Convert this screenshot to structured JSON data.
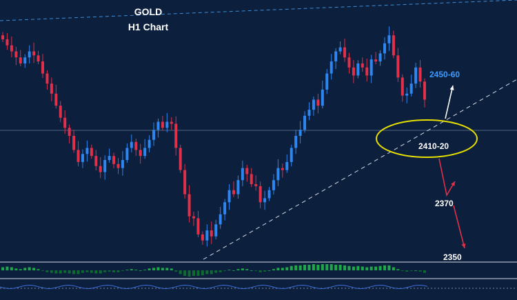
{
  "chart_data": {
    "type": "candlestick",
    "title": "GOLD",
    "subtitle": "H1 Chart",
    "colors": {
      "background": "#0c1f3d",
      "bull": "#2e86f0",
      "bear": "#e0304a",
      "annotation_white": "#ffffff",
      "annotation_blue": "#3d9bff",
      "circle": "#e8e000",
      "oscillator_up": "#1fa84a",
      "oscillator_down": "#0f6b2f"
    },
    "series_close": [
      2458,
      2455,
      2452,
      2449,
      2446,
      2449,
      2452,
      2450,
      2447,
      2441,
      2436,
      2431,
      2425,
      2419,
      2414,
      2410,
      2403,
      2397,
      2401,
      2404,
      2400,
      2395,
      2392,
      2398,
      2400,
      2396,
      2394,
      2398,
      2404,
      2407,
      2403,
      2400,
      2404,
      2408,
      2413,
      2417,
      2414,
      2417,
      2416,
      2404,
      2393,
      2381,
      2370,
      2369,
      2361,
      2358,
      2363,
      2360,
      2366,
      2371,
      2377,
      2383,
      2381,
      2388,
      2394,
      2391,
      2386,
      2385,
      2377,
      2379,
      2383,
      2388,
      2394,
      2393,
      2397,
      2404,
      2410,
      2413,
      2420,
      2423,
      2428,
      2425,
      2433,
      2441,
      2447,
      2452,
      2454,
      2449,
      2444,
      2440,
      2446,
      2444,
      2440,
      2448,
      2447,
      2451,
      2456,
      2460,
      2450,
      2439,
      2430,
      2431,
      2436,
      2444,
      2437,
      2428
    ],
    "ylim": [
      2350,
      2470
    ],
    "levels": [
      {
        "label": "2450-60",
        "value": 2450
      },
      {
        "label": "2410-20",
        "value": 2415
      },
      {
        "label": "2370",
        "value": 2370
      },
      {
        "label": "2350",
        "value": 2350
      }
    ],
    "oscillator": [
      0.5,
      0.6,
      0.5,
      0.3,
      0.2,
      0.4,
      0.5,
      0.4,
      0.2,
      -0.1,
      -0.3,
      -0.4,
      -0.5,
      -0.5,
      -0.4,
      -0.5,
      -0.6,
      -0.6,
      -0.4,
      -0.3,
      -0.4,
      -0.5,
      -0.5,
      -0.3,
      -0.2,
      -0.3,
      -0.3,
      -0.1,
      0.1,
      0.2,
      0.1,
      0.0,
      0.1,
      0.3,
      0.4,
      0.5,
      0.4,
      0.4,
      0.3,
      -0.2,
      -0.6,
      -0.9,
      -1.0,
      -0.9,
      -0.9,
      -0.8,
      -0.6,
      -0.6,
      -0.4,
      -0.3,
      -0.1,
      0.1,
      0.0,
      0.2,
      0.3,
      0.2,
      0.0,
      -0.1,
      -0.3,
      -0.2,
      0.0,
      0.2,
      0.4,
      0.4,
      0.5,
      0.7,
      0.8,
      0.8,
      0.9,
      0.9,
      1.0,
      0.9,
      1.0,
      1.0,
      1.0,
      0.9,
      0.9,
      0.8,
      0.7,
      0.6,
      0.7,
      0.6,
      0.5,
      0.6,
      0.6,
      0.7,
      0.8,
      0.8,
      0.5,
      0.2,
      -0.1,
      -0.2,
      -0.1,
      0.0,
      -0.2,
      -0.4
    ]
  }
}
